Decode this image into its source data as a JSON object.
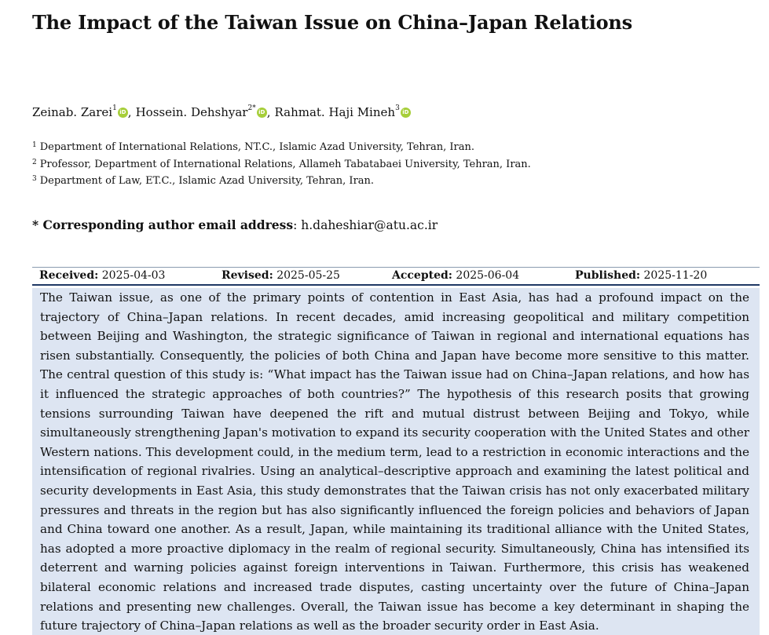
{
  "title": "The Impact of the Taiwan Issue on China–Japan Relations",
  "authors": [
    {
      "name": "Zeinab. Zarei",
      "sup": "1"
    },
    {
      "name": "Hossein. Dehshyar",
      "sup": "2*"
    },
    {
      "name": "Rahmat. Haji Mineh",
      "sup": "3"
    }
  ],
  "orcid_icon_text": "iD",
  "orcid_color": "#a6ce39",
  "affiliations": [
    {
      "num": "1",
      "text": "Department of International Relations, NT.C., Islamic Azad University, Tehran, Iran."
    },
    {
      "num": "2",
      "text": "Professor, Department of International Relations, Allameh Tabatabaei University, Tehran, Iran."
    },
    {
      "num": "3",
      "text": "Department of Law, ET.C., Islamic Azad University, Tehran, Iran."
    }
  ],
  "corresponding": {
    "label": "* Corresponding author email address",
    "separator": ": ",
    "email": "h.daheshiar@atu.ac.ir"
  },
  "dates": {
    "received_label": "Received:",
    "received": "2025-04-03",
    "revised_label": "Revised:",
    "revised": "2025-05-25",
    "accepted_label": "Accepted:",
    "accepted": "2025-06-04",
    "published_label": "Published:",
    "published": "2025-11-20"
  },
  "abstract": "The Taiwan issue, as one of the primary points of contention in East Asia, has had a profound impact on the trajectory of China–Japan relations. In recent decades, amid increasing geopolitical and military competition between Beijing and Washington, the strategic significance of Taiwan in regional and international equations has risen substantially. Consequently, the policies of both China and Japan have become more sensitive to this matter. The central question of this study is: “What impact has the Taiwan issue had on China–Japan relations, and how has it influenced the strategic approaches of both countries?” The hypothesis of this research posits that growing tensions surrounding Taiwan have deepened the rift and mutual distrust between Beijing and Tokyo, while simultaneously strengthening Japan's motivation to expand its security cooperation with the United States and other Western nations. This development could, in the medium term, lead to a restriction in economic interactions and the intensification of regional rivalries. Using an analytical–descriptive approach and examining the latest political and security developments in East Asia, this study demonstrates that the Taiwan crisis has not only exacerbated military pressures and threats in the region but has also significantly influenced the foreign policies and behaviors of Japan and China toward one another. As a result, Japan, while maintaining its traditional alliance with the United States, has adopted a more proactive diplomacy in the realm of regional security. Simultaneously, China has intensified its deterrent and warning policies against foreign interventions in Taiwan. Furthermore, this crisis has weakened bilateral economic relations and increased trade disputes, casting uncertainty over the future of China–Japan relations and presenting new challenges. Overall, the Taiwan issue has become a key determinant in shaping the future trajectory of China–Japan relations as well as the broader security order in East Asia."
}
